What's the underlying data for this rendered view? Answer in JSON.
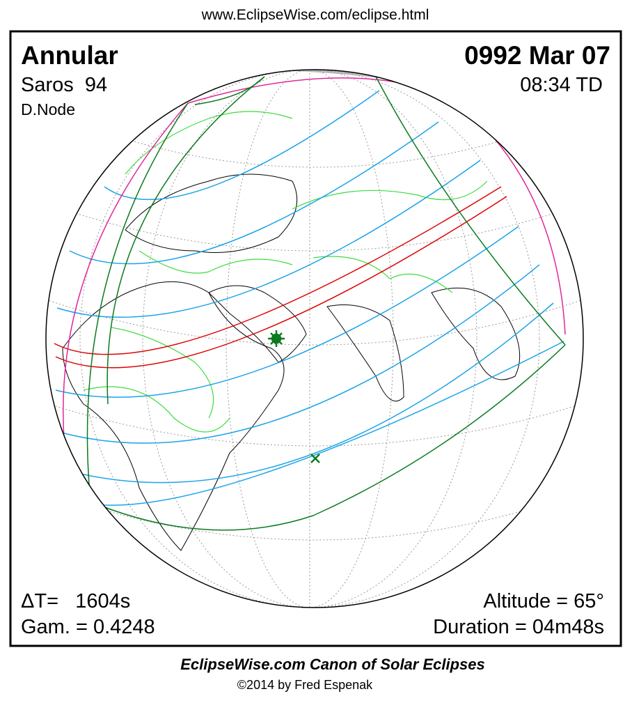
{
  "header": {
    "url": "www.EclipseWise.com/eclipse.html"
  },
  "eclipse": {
    "type": "Annular",
    "date": "0992 Mar 07",
    "saros": "Saros  94",
    "time": "08:34 TD",
    "node": "D.Node",
    "delta_t": "ΔT=   1604s",
    "gamma": "Gam. = 0.4248",
    "altitude": "Altitude = 65°",
    "duration": "Duration = 04m48s"
  },
  "footer": {
    "title": "EclipseWise.com Canon of Solar Eclipses",
    "credit": "©2014 by Fred Espenak"
  }
}
